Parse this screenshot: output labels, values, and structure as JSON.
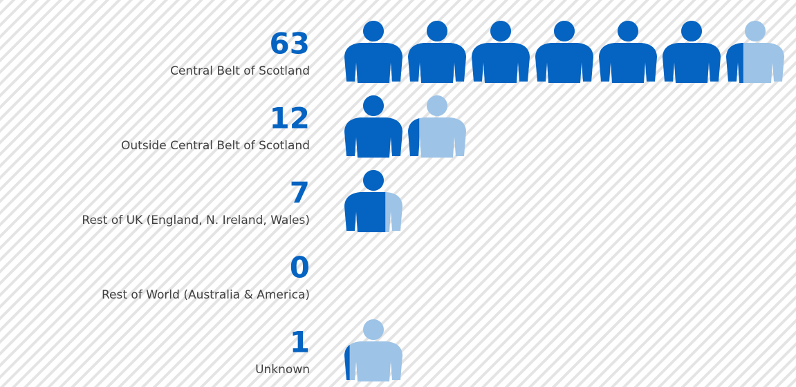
{
  "chart_data": {
    "type": "pictogram",
    "categories": [
      "Central Belt of Scotland",
      "Outside Central Belt of Scotland",
      "Rest of UK (England, N. Ireland, Wales)",
      "Rest of World (Australia & America)",
      "Unknown"
    ],
    "values": [
      63,
      12,
      7,
      0,
      1
    ],
    "color": "#0563c1",
    "empty_color": "#9dc3e6"
  }
}
